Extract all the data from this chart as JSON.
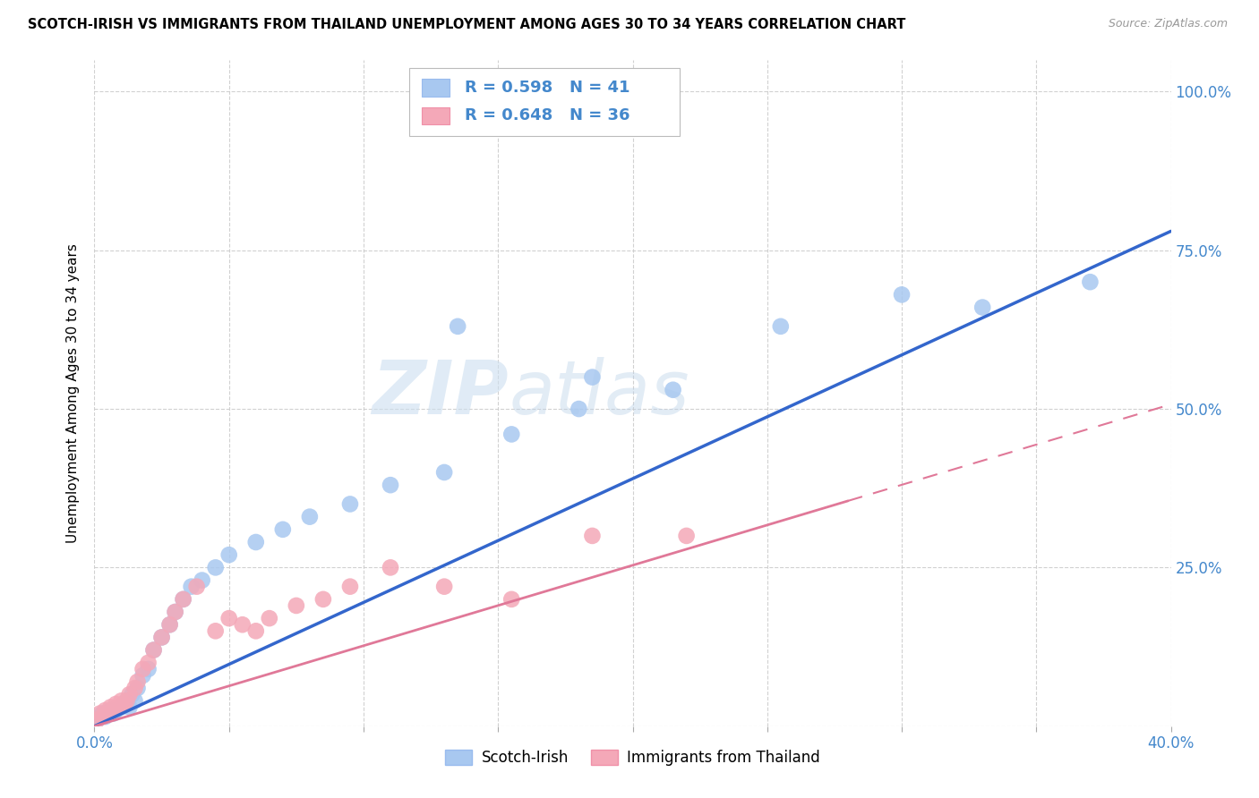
{
  "title": "SCOTCH-IRISH VS IMMIGRANTS FROM THAILAND UNEMPLOYMENT AMONG AGES 30 TO 34 YEARS CORRELATION CHART",
  "source": "Source: ZipAtlas.com",
  "ylabel": "Unemployment Among Ages 30 to 34 years",
  "xmin": 0.0,
  "xmax": 0.4,
  "ymin": 0.0,
  "ymax": 1.05,
  "xtick_vals": [
    0.0,
    0.05,
    0.1,
    0.15,
    0.2,
    0.25,
    0.3,
    0.35,
    0.4
  ],
  "ytick_vals": [
    0.0,
    0.25,
    0.5,
    0.75,
    1.0
  ],
  "ytick_labels": [
    "",
    "25.0%",
    "50.0%",
    "75.0%",
    "100.0%"
  ],
  "xtick_labels": [
    "0.0%",
    "",
    "",
    "",
    "",
    "",
    "",
    "",
    "40.0%"
  ],
  "series1_color": "#a8c8f0",
  "series2_color": "#f4a8b8",
  "line1_color": "#3366cc",
  "line2_color": "#e07898",
  "text_blue": "#4488cc",
  "grid_color": "#cccccc",
  "legend_label1": "Scotch-Irish",
  "legend_label2": "Immigrants from Thailand",
  "si_line": [
    0.0,
    0.0,
    0.4,
    0.78
  ],
  "th_line": [
    0.0,
    0.0,
    0.28,
    0.355
  ],
  "scotch_irish_x": [
    0.001,
    0.002,
    0.003,
    0.004,
    0.005,
    0.006,
    0.007,
    0.008,
    0.01,
    0.011,
    0.012,
    0.013,
    0.014,
    0.015,
    0.016,
    0.018,
    0.02,
    0.022,
    0.025,
    0.028,
    0.03,
    0.033,
    0.036,
    0.04,
    0.045,
    0.05,
    0.06,
    0.07,
    0.08,
    0.095,
    0.11,
    0.13,
    0.155,
    0.18,
    0.215,
    0.255,
    0.3,
    0.185,
    0.33,
    0.37,
    0.135
  ],
  "scotch_irish_y": [
    0.01,
    0.015,
    0.02,
    0.015,
    0.02,
    0.025,
    0.02,
    0.025,
    0.03,
    0.035,
    0.04,
    0.03,
    0.05,
    0.04,
    0.06,
    0.08,
    0.09,
    0.12,
    0.14,
    0.16,
    0.18,
    0.2,
    0.22,
    0.23,
    0.25,
    0.27,
    0.29,
    0.31,
    0.33,
    0.35,
    0.38,
    0.4,
    0.46,
    0.5,
    0.53,
    0.63,
    0.68,
    0.55,
    0.66,
    0.7,
    0.63
  ],
  "thailand_x": [
    0.001,
    0.002,
    0.003,
    0.004,
    0.005,
    0.006,
    0.007,
    0.008,
    0.009,
    0.01,
    0.011,
    0.012,
    0.013,
    0.015,
    0.016,
    0.018,
    0.02,
    0.022,
    0.025,
    0.028,
    0.03,
    0.033,
    0.038,
    0.045,
    0.05,
    0.055,
    0.06,
    0.065,
    0.075,
    0.085,
    0.095,
    0.11,
    0.13,
    0.155,
    0.185,
    0.22
  ],
  "thailand_y": [
    0.01,
    0.02,
    0.015,
    0.025,
    0.02,
    0.03,
    0.025,
    0.035,
    0.03,
    0.04,
    0.035,
    0.04,
    0.05,
    0.06,
    0.07,
    0.09,
    0.1,
    0.12,
    0.14,
    0.16,
    0.18,
    0.2,
    0.22,
    0.15,
    0.17,
    0.16,
    0.15,
    0.17,
    0.19,
    0.2,
    0.22,
    0.25,
    0.22,
    0.2,
    0.3,
    0.3
  ]
}
